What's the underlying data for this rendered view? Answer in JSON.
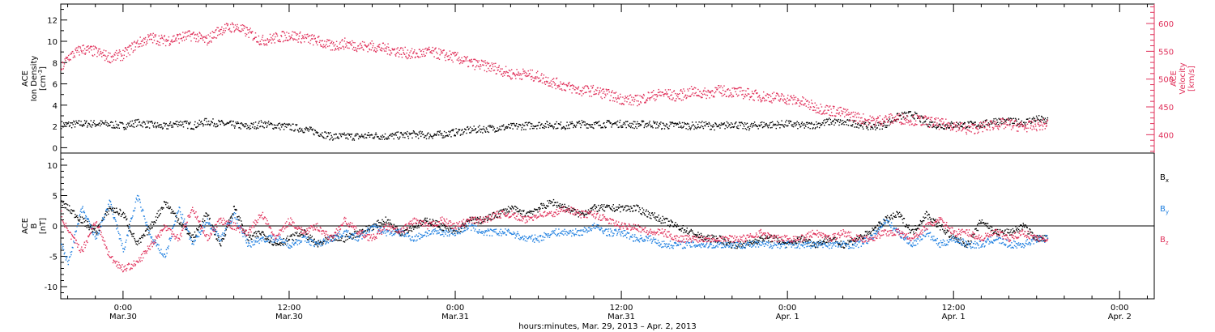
{
  "x_axis": {
    "title": "hours:minutes, Mar. 29, 2013 – Apr.  2, 2013",
    "ticks": [
      {
        "time": "0:00",
        "date": "Mar.30",
        "hours": 24
      },
      {
        "time": "12:00",
        "date": "Mar.30",
        "hours": 36
      },
      {
        "time": "0:00",
        "date": "Mar.31",
        "hours": 48
      },
      {
        "time": "12:00",
        "date": "Mar.31",
        "hours": 60
      },
      {
        "time": "0:00",
        "date": "Apr. 1",
        "hours": 72
      },
      {
        "time": "12:00",
        "date": "Apr. 1",
        "hours": 84
      },
      {
        "time": "0:00",
        "date": "Apr. 2",
        "hours": 96
      }
    ],
    "range_hours": [
      19.5,
      98.5
    ]
  },
  "panel_top": {
    "left_label_lines": [
      "ACE",
      "Ion Density"
    ],
    "left_unit_main": "[cm",
    "left_unit_sup": "-3",
    "left_unit_end": "]",
    "right_label_lines": [
      "ACE",
      "Velocity",
      "[km/s]"
    ],
    "left_ticks": [
      "0",
      "2",
      "4",
      "6",
      "8",
      "10",
      "12"
    ],
    "right_ticks": [
      "400",
      "450",
      "500",
      "550",
      "600"
    ]
  },
  "panel_bottom": {
    "left_label_lines": [
      "ACE",
      "B",
      "[nT]"
    ],
    "left_ticks": [
      "-10",
      "-5",
      "0",
      "5",
      "10"
    ],
    "legend": [
      {
        "main": "B",
        "sub": "x",
        "color": "#000000"
      },
      {
        "main": "B",
        "sub": "y",
        "color": "#1e7fe0"
      },
      {
        "main": "B",
        "sub": "z",
        "color": "#e0305a"
      }
    ]
  },
  "colors": {
    "density": "#000000",
    "velocity": "#e0305a",
    "bx": "#000000",
    "by": "#1e7fe0",
    "bz": "#e0305a"
  },
  "chart_data": [
    {
      "type": "scatter",
      "series": [
        {
          "name": "",
          "axis": "left",
          "color": "#000000",
          "x_hours": [
            19.5,
            21,
            22.5,
            24,
            25,
            26,
            27,
            28,
            29,
            30,
            31,
            32,
            33,
            34,
            35,
            36,
            37,
            38,
            39,
            40,
            41,
            42,
            43,
            44,
            45,
            46,
            47,
            48,
            49,
            50,
            51,
            52,
            53,
            54,
            55,
            56,
            57,
            58,
            59,
            60,
            61,
            62,
            63,
            64,
            65,
            66,
            67,
            68,
            69,
            70,
            71,
            72,
            73,
            74,
            75,
            76,
            77,
            78,
            79,
            80,
            81,
            82,
            83,
            84,
            85,
            86,
            87,
            88,
            89,
            90,
            90.8
          ],
          "values": [
            2.2,
            2.3,
            2.3,
            2.1,
            2.4,
            2.2,
            2.0,
            2.4,
            2.1,
            2.5,
            2.3,
            2.2,
            2.0,
            2.3,
            2.1,
            2.0,
            1.8,
            1.5,
            1.1,
            1.1,
            1.1,
            1.2,
            1.1,
            1.2,
            1.3,
            1.2,
            1.3,
            1.5,
            1.7,
            1.8,
            1.9,
            2.0,
            2.1,
            2.2,
            2.2,
            2.1,
            2.3,
            2.2,
            2.3,
            2.3,
            2.2,
            2.3,
            2.1,
            2.2,
            2.1,
            2.2,
            2.0,
            2.3,
            2.0,
            2.2,
            2.2,
            2.3,
            2.1,
            2.2,
            2.5,
            2.4,
            2.3,
            2.0,
            2.2,
            3.0,
            3.2,
            2.4,
            2.1,
            2.2,
            2.2,
            2.2,
            2.6,
            2.5,
            2.4,
            2.8,
            2.5
          ],
          "ylim": [
            -0.5,
            13.5
          ]
        },
        {
          "name": "",
          "axis": "right",
          "color": "#e0305a",
          "x_hours": [
            19.5,
            20,
            21,
            22,
            23,
            24,
            25,
            26,
            27,
            28,
            29,
            30,
            31,
            32,
            33,
            34,
            35,
            36,
            37,
            38,
            39,
            40,
            41,
            42,
            43,
            44,
            45,
            46,
            47,
            48,
            49,
            50,
            51,
            52,
            53,
            54,
            55,
            56,
            57,
            58,
            59,
            60,
            61,
            62,
            63,
            64,
            65,
            66,
            67,
            68,
            69,
            70,
            71,
            72,
            73,
            74,
            75,
            76,
            77,
            78,
            79,
            80,
            81,
            82,
            83,
            84,
            85,
            86,
            87,
            88,
            89,
            90,
            90.8
          ],
          "values": [
            520,
            540,
            555,
            550,
            540,
            545,
            565,
            575,
            570,
            575,
            580,
            570,
            590,
            595,
            585,
            570,
            575,
            580,
            575,
            570,
            560,
            565,
            560,
            560,
            555,
            550,
            545,
            550,
            545,
            540,
            530,
            525,
            520,
            510,
            510,
            505,
            495,
            488,
            480,
            480,
            473,
            465,
            462,
            470,
            475,
            470,
            478,
            475,
            480,
            478,
            475,
            470,
            468,
            465,
            460,
            450,
            445,
            440,
            432,
            425,
            428,
            430,
            428,
            425,
            420,
            418,
            410,
            415,
            420,
            420,
            415,
            418,
            420
          ],
          "ylim": [
            367,
            635
          ]
        }
      ]
    },
    {
      "type": "scatter",
      "series": [
        {
          "name": "B_x",
          "color": "#000000",
          "x_hours": [
            19.5,
            20,
            21,
            22,
            23,
            24,
            25,
            26,
            27,
            28,
            29,
            30,
            31,
            32,
            33,
            34,
            35,
            36,
            37,
            38,
            39,
            40,
            41,
            42,
            43,
            44,
            45,
            46,
            47,
            48,
            49,
            50,
            51,
            52,
            53,
            54,
            55,
            56,
            57,
            58,
            59,
            60,
            61,
            62,
            63,
            64,
            65,
            66,
            67,
            68,
            69,
            70,
            71,
            72,
            73,
            74,
            75,
            76,
            77,
            78,
            79,
            80,
            81,
            82,
            83,
            84,
            85,
            86,
            87,
            88,
            89,
            90,
            90.8
          ],
          "values": [
            4,
            3,
            1,
            -1,
            3,
            2,
            -3,
            0,
            4,
            1,
            -2,
            2,
            -3,
            3,
            -2,
            -1,
            -3,
            -2,
            -1,
            -3,
            -2,
            -2,
            -1,
            0,
            1,
            -1,
            0,
            1,
            0,
            -1,
            1,
            1,
            2,
            3,
            2,
            3,
            4,
            3,
            2,
            3,
            3,
            3,
            3,
            2,
            1,
            0,
            -1,
            -2,
            -2,
            -3,
            -3,
            -2,
            -2,
            -3,
            -2,
            -3,
            -2,
            -3,
            -2,
            -1,
            1,
            2,
            -1,
            2,
            0,
            -2,
            -3,
            1,
            -1,
            -1,
            0,
            -2,
            -2
          ],
          "ylim": [
            -12,
            12
          ]
        },
        {
          "name": "B_y",
          "color": "#1e7fe0",
          "x_hours": [
            19.5,
            20,
            21,
            22,
            23,
            24,
            25,
            26,
            27,
            28,
            29,
            30,
            31,
            32,
            33,
            34,
            35,
            36,
            37,
            38,
            39,
            40,
            41,
            42,
            43,
            44,
            45,
            46,
            47,
            48,
            49,
            50,
            51,
            52,
            53,
            54,
            55,
            56,
            57,
            58,
            59,
            60,
            61,
            62,
            63,
            64,
            65,
            66,
            67,
            68,
            69,
            70,
            71,
            72,
            73,
            74,
            75,
            76,
            77,
            78,
            79,
            80,
            81,
            82,
            83,
            84,
            85,
            86,
            87,
            88,
            89,
            90,
            90.8
          ],
          "values": [
            -3,
            -6,
            3,
            -2,
            4,
            -4,
            5,
            -2,
            -5,
            3,
            -3,
            1,
            -2,
            2,
            -3,
            -2,
            -2,
            -3,
            -2,
            -3,
            -2,
            -1,
            -2,
            0,
            -1,
            -1,
            -2,
            -1,
            -1,
            -1,
            0,
            -1,
            -1,
            -1,
            -2,
            -2,
            -1,
            -1,
            -1,
            0,
            -1,
            -1,
            -2,
            -2,
            -3,
            -3,
            -3,
            -3,
            -3,
            -3,
            -3,
            -3,
            -3,
            -3,
            -3,
            -3,
            -3,
            -3,
            -3,
            -2,
            1,
            -1,
            -3,
            -1,
            -3,
            -2,
            -3,
            -3,
            -2,
            -3,
            -3,
            -2,
            -2
          ],
          "ylim": [
            -12,
            12
          ]
        },
        {
          "name": "B_z",
          "color": "#e0305a",
          "x_hours": [
            19.5,
            20,
            21,
            22,
            23,
            24,
            25,
            26,
            27,
            28,
            29,
            30,
            31,
            32,
            33,
            34,
            35,
            36,
            37,
            38,
            39,
            40,
            41,
            42,
            43,
            44,
            45,
            46,
            47,
            48,
            49,
            50,
            51,
            52,
            53,
            54,
            55,
            56,
            57,
            58,
            59,
            60,
            61,
            62,
            63,
            64,
            65,
            66,
            67,
            68,
            69,
            70,
            71,
            72,
            73,
            74,
            75,
            76,
            77,
            78,
            79,
            80,
            81,
            82,
            83,
            84,
            85,
            86,
            87,
            88,
            89,
            90,
            90.8
          ],
          "values": [
            2,
            -1,
            -4,
            1,
            -5,
            -7,
            -6,
            -3,
            0,
            -2,
            3,
            -2,
            1,
            0,
            -1,
            2,
            -2,
            1,
            -1,
            0,
            -2,
            1,
            -1,
            -2,
            0,
            -1,
            1,
            0,
            1,
            0,
            1,
            1,
            2,
            2,
            1,
            2,
            2,
            3,
            2,
            2,
            1,
            0,
            0,
            -1,
            -1,
            -2,
            -2,
            -2,
            -2,
            -2,
            -2,
            -1,
            -2,
            -2,
            -2,
            -1,
            -2,
            -1,
            -2,
            -2,
            -1,
            -1,
            -2,
            0,
            1,
            -1,
            -1,
            -2,
            -1,
            -2,
            -1,
            -2,
            -2
          ],
          "ylim": [
            -12,
            12
          ]
        }
      ]
    }
  ]
}
